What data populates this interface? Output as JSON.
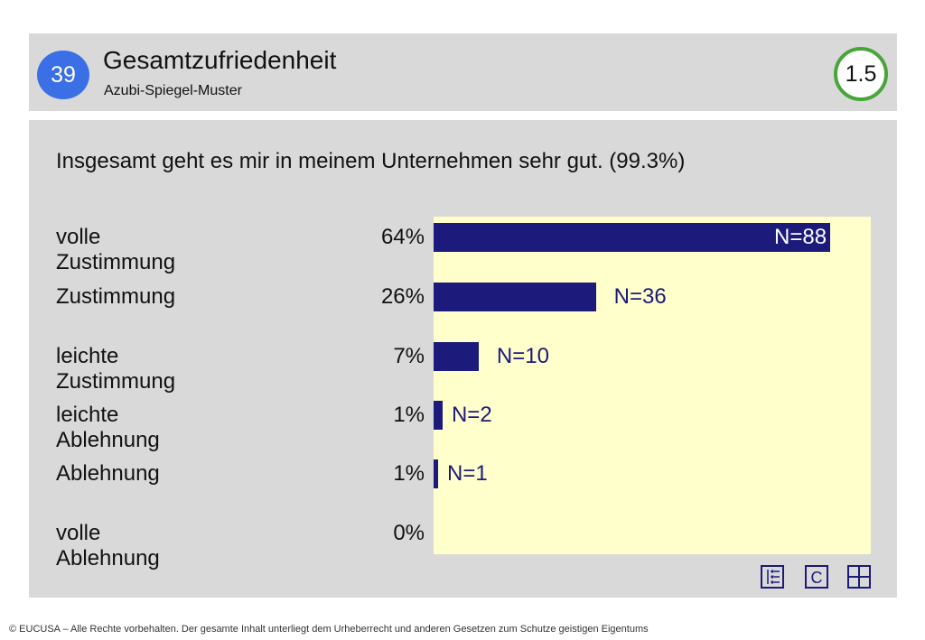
{
  "header": {
    "page_number": "39",
    "title": "Gesamtzufriedenheit",
    "subtitle": "Azubi-Spiegel-Muster",
    "section": "1.5"
  },
  "colors": {
    "bar": "#1c1a7a",
    "plot_background": "#ffffcc",
    "page_badge": "#3a6fe6",
    "section_ring": "#49a53a"
  },
  "chart_data": {
    "type": "bar",
    "orientation": "horizontal",
    "title": "Insgesamt geht es mir in meinem Unternehmen sehr gut. (99.3%)",
    "categories": [
      "volle Zustimmung",
      "Zustimmung",
      "leichte Zustimmung",
      "leichte Ablehnung",
      "Ablehnung",
      "volle Ablehnung"
    ],
    "percentages": [
      "64%",
      "26%",
      "7%",
      "1%",
      "1%",
      "0%"
    ],
    "values": [
      88,
      36,
      10,
      2,
      1,
      0
    ],
    "value_labels": [
      "N=88",
      "N=36",
      "N=10",
      "N=2",
      "N=1",
      ""
    ],
    "xlim": [
      0,
      97
    ],
    "grid": false
  },
  "icons": [
    "list-icon",
    "c-icon",
    "grid-icon"
  ],
  "icon_labels": {
    "c": "C"
  },
  "footer": "© EUCUSA – Alle Rechte vorbehalten. Der gesamte Inhalt unterliegt dem Urheberrecht und anderen Gesetzen zum Schutze geistigen Eigentums"
}
